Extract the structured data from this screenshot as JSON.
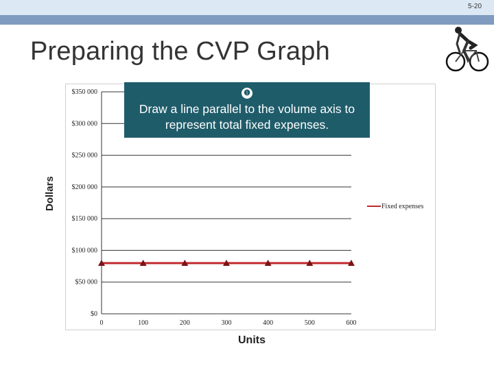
{
  "page": {
    "number": "5-20"
  },
  "slide": {
    "title": "Preparing the CVP Graph",
    "icon": "cyclist-icon"
  },
  "callout": {
    "step": "❶",
    "text": "Draw a line parallel to the volume axis to represent total fixed expenses."
  },
  "chart_data": {
    "type": "line",
    "title": "",
    "xlabel": "Units",
    "ylabel": "Dollars",
    "x": [
      0,
      100,
      200,
      300,
      400,
      500,
      600
    ],
    "x_tick_labels": [
      "0",
      "100",
      "200",
      "300",
      "400",
      "500",
      "600"
    ],
    "y_ticks": [
      0,
      50000,
      100000,
      150000,
      200000,
      250000,
      300000,
      350000
    ],
    "y_tick_labels": [
      "$0",
      "$50 000",
      "$100 000",
      "$150 000",
      "$200 000",
      "$250 000",
      "$300 000",
      "$350 000"
    ],
    "xlim": [
      0,
      600
    ],
    "ylim": [
      0,
      350000
    ],
    "grid": true,
    "legend": "right",
    "series": [
      {
        "name": "Fixed expenses",
        "values": [
          80000,
          80000,
          80000,
          80000,
          80000,
          80000,
          80000
        ],
        "color": "#c0282d",
        "marker": "triangle"
      }
    ]
  }
}
